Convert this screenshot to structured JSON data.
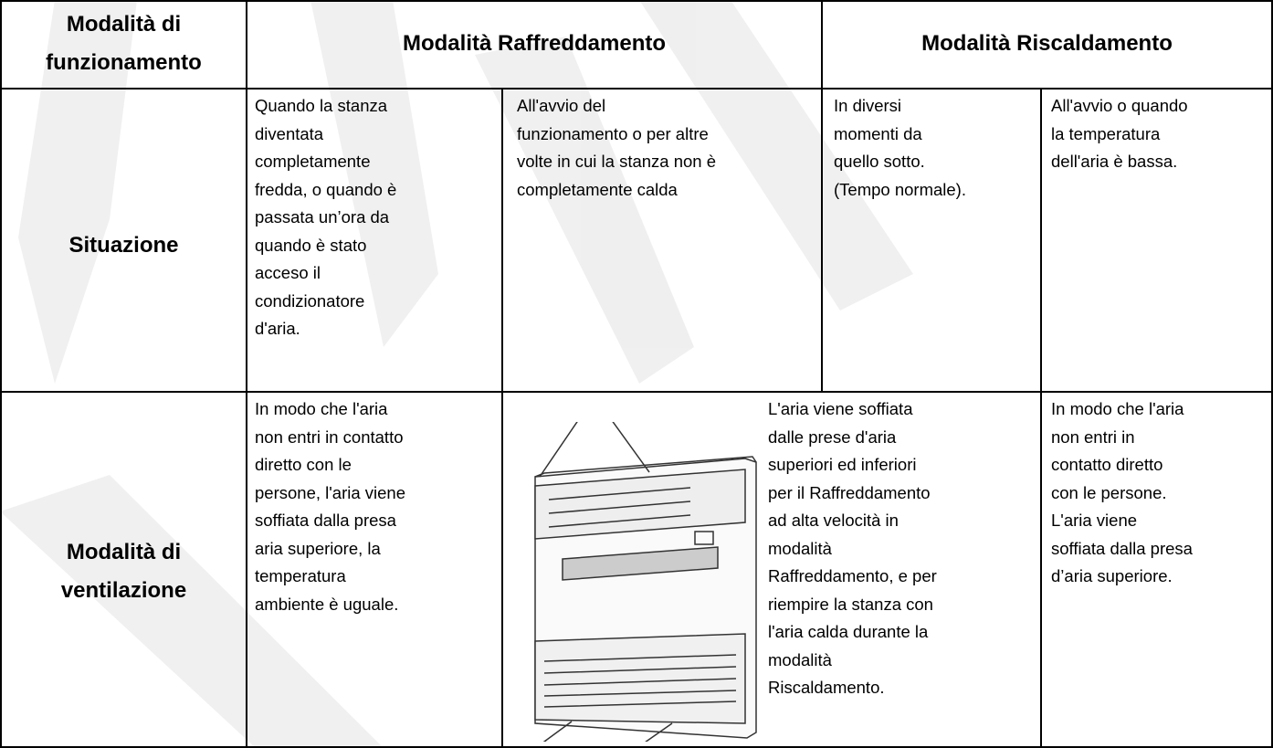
{
  "header": {
    "mode": [
      "Modalità di",
      "funzionamento"
    ],
    "cooling": "Modalità Raffreddamento",
    "heating": "Modalità Riscaldamento"
  },
  "rows": [
    {
      "label": [
        "Situazione"
      ],
      "cells": [
        [
          "Quando la stanza",
          "diventata",
          "completamente",
          "fredda, o quando è",
          "passata un’ora da",
          "quando è stato",
          "acceso il",
          "condizionatore",
          "d'aria."
        ],
        [
          "All'avvio del",
          "funzionamento o per altre",
          "volte in cui la stanza non è",
          "completamente calda"
        ],
        [
          "In diversi",
          "momenti da",
          "quello sotto.",
          "(Tempo normale)."
        ],
        [
          "All'avvio o quando",
          "la temperatura",
          "dell'aria è bassa."
        ]
      ]
    },
    {
      "label": [
        "Modalità di",
        "ventilazione"
      ],
      "cells": [
        [
          "In modo che l'aria",
          "non entri in contatto",
          "diretto con le",
          "persone, l'aria viene",
          "soffiata dalla presa",
          "aria superiore, la",
          "temperatura",
          "ambiente è uguale."
        ],
        [
          "L'aria viene soffiata",
          "dalle prese d'aria",
          "superiori ed inferiori",
          "per il Raffreddamento",
          "ad alta velocità in",
          "modalità",
          "Raffreddamento, e per",
          "riempire la stanza con",
          "l'aria calda durante la",
          "modalità",
          "Riscaldamento."
        ],
        [
          "In modo che l'aria",
          "non entri in",
          "contatto diretto",
          "con le persone.",
          "L'aria viene",
          "soffiata dalla presa",
          "d’aria superiore."
        ]
      ]
    }
  ]
}
